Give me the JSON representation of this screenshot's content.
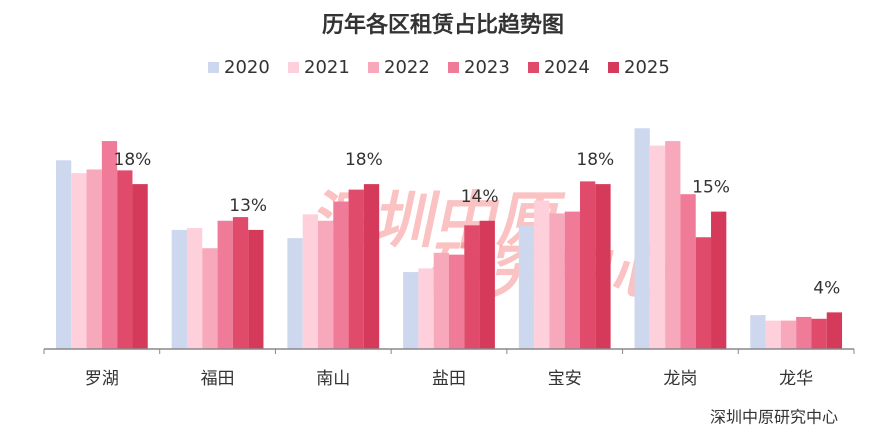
{
  "chart_data": {
    "type": "bar",
    "title": "历年各区租赁占比趋势图",
    "categories": [
      "罗湖",
      "福田",
      "南山",
      "盐田",
      "宝安",
      "龙岗",
      "龙华"
    ],
    "series": [
      {
        "name": "2020",
        "color": "#cdd8ee",
        "values": [
          20.6,
          13.0,
          12.1,
          8.4,
          13.5,
          24.1,
          3.7
        ]
      },
      {
        "name": "2021",
        "color": "#fdd0dc",
        "values": [
          19.2,
          13.2,
          14.7,
          8.8,
          16.2,
          22.2,
          3.1
        ]
      },
      {
        "name": "2022",
        "color": "#f7a8bb",
        "values": [
          19.6,
          11.0,
          14.0,
          10.5,
          14.8,
          22.7,
          3.1
        ]
      },
      {
        "name": "2023",
        "color": "#ef7b98",
        "values": [
          22.7,
          14.0,
          16.1,
          10.3,
          15.0,
          16.9,
          3.5
        ]
      },
      {
        "name": "2024",
        "color": "#e04a6b",
        "values": [
          19.5,
          14.4,
          17.4,
          13.5,
          18.3,
          12.2,
          3.3
        ]
      },
      {
        "name": "2025",
        "color": "#d63a5a",
        "values": [
          18,
          13,
          18,
          14,
          18,
          15,
          4
        ],
        "value_labels": [
          "18%",
          "13%",
          "18%",
          "14%",
          "18%",
          "15%",
          "4%"
        ]
      }
    ],
    "ylim": [
      0,
      25
    ],
    "watermark": [
      "深圳中原",
      "研究中心"
    ],
    "source": "深圳中原研究中心"
  }
}
